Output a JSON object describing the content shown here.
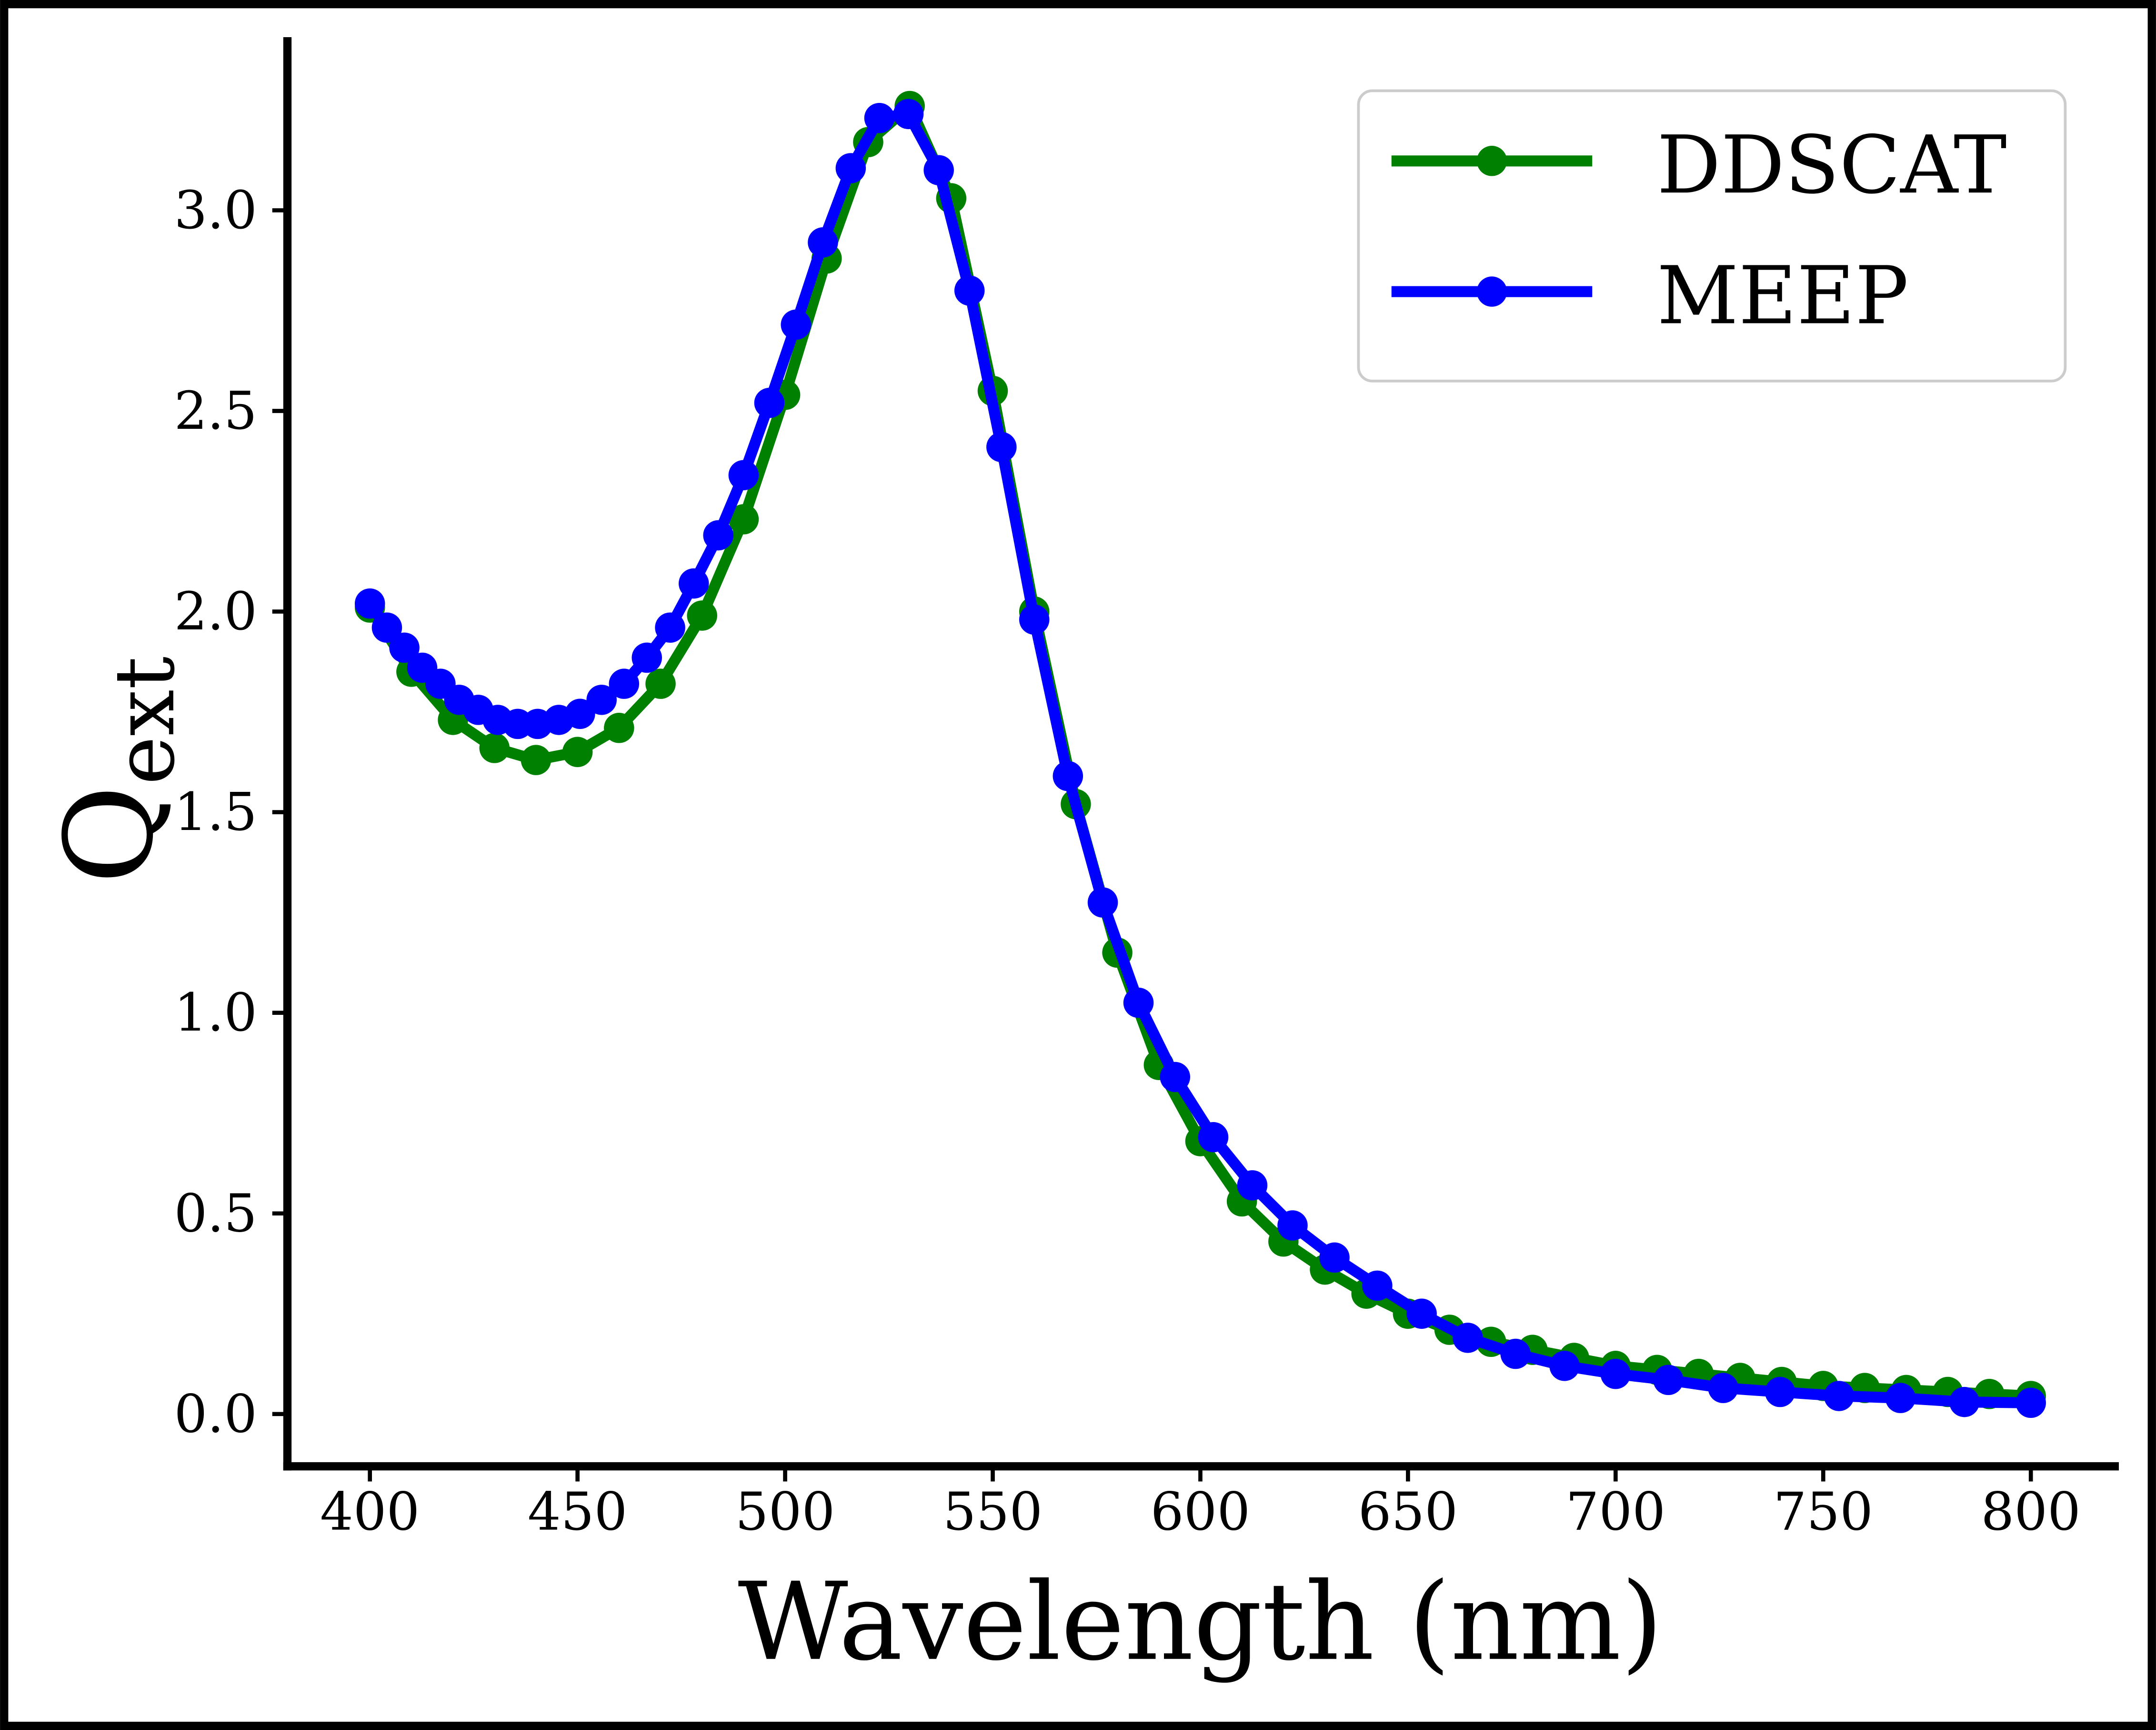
{
  "chart_data": {
    "type": "line",
    "title": "",
    "xlabel": "Wavelength (nm)",
    "ylabel": "Q",
    "ylabel_subscript": "ext",
    "xlim": [
      380,
      820
    ],
    "ylim": [
      -0.12,
      3.43
    ],
    "xticks": [
      "400",
      "450",
      "500",
      "550",
      "600",
      "650",
      "700",
      "750",
      "800"
    ],
    "yticks": [
      "0.0",
      "0.5",
      "1.0",
      "1.5",
      "2.0",
      "2.5",
      "3.0"
    ],
    "grid": false,
    "legend_position": "top-right",
    "series": [
      {
        "name": "DDSCAT",
        "color": "#008000",
        "marker": "circle",
        "x": [
          400,
          410,
          420,
          430,
          440,
          450,
          460,
          470,
          480,
          490,
          500,
          510,
          520,
          530,
          540,
          550,
          560,
          570,
          580,
          590,
          600,
          610,
          620,
          630,
          640,
          650,
          660,
          670,
          680,
          690,
          700,
          710,
          720,
          730,
          740,
          750,
          760,
          770,
          780,
          790,
          800
        ],
        "y": [
          2.01,
          1.85,
          1.73,
          1.66,
          1.63,
          1.65,
          1.71,
          1.82,
          1.99,
          2.23,
          2.54,
          2.88,
          3.17,
          3.26,
          3.03,
          2.55,
          2.0,
          1.52,
          1.15,
          0.87,
          0.68,
          0.53,
          0.43,
          0.36,
          0.3,
          0.25,
          0.21,
          0.18,
          0.16,
          0.14,
          0.12,
          0.11,
          0.1,
          0.09,
          0.08,
          0.07,
          0.065,
          0.06,
          0.055,
          0.05,
          0.045
        ]
      },
      {
        "name": "MEEP",
        "color": "#0000ff",
        "marker": "circle",
        "x": [
          400.0,
          404.1,
          408.3,
          412.6,
          417.0,
          421.5,
          426.1,
          430.8,
          435.6,
          440.4,
          445.5,
          450.6,
          455.8,
          461.2,
          466.7,
          472.3,
          478.0,
          483.9,
          490.0,
          496.2,
          502.6,
          509.1,
          515.8,
          522.7,
          529.7,
          537.0,
          544.4,
          552.1,
          560.0,
          568.1,
          576.5,
          585.1,
          593.9,
          603.1,
          612.5,
          622.2,
          632.3,
          642.6,
          653.3,
          664.4,
          675.9,
          687.7,
          700.0,
          712.7,
          725.9,
          739.6,
          753.8,
          768.6,
          784.0,
          800.0
        ],
        "y": [
          2.02,
          1.96,
          1.91,
          1.86,
          1.82,
          1.78,
          1.755,
          1.73,
          1.72,
          1.72,
          1.73,
          1.745,
          1.78,
          1.82,
          1.885,
          1.96,
          2.07,
          2.19,
          2.34,
          2.52,
          2.715,
          2.92,
          3.105,
          3.23,
          3.24,
          3.1,
          2.8,
          2.41,
          1.98,
          1.59,
          1.275,
          1.025,
          0.84,
          0.69,
          0.57,
          0.47,
          0.39,
          0.32,
          0.25,
          0.19,
          0.15,
          0.12,
          0.1,
          0.085,
          0.065,
          0.055,
          0.045,
          0.04,
          0.03,
          0.028
        ]
      }
    ]
  }
}
